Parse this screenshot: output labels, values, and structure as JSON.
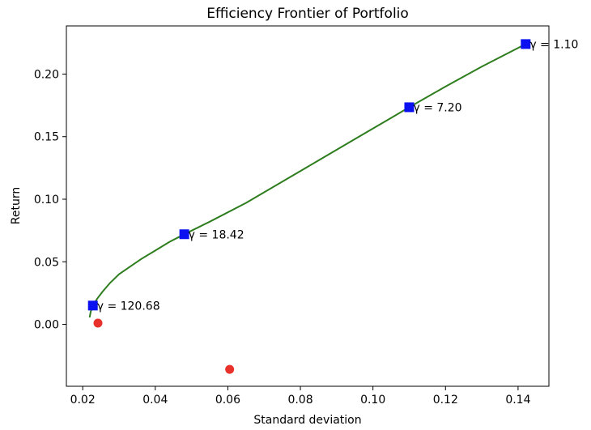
{
  "chart_data": {
    "type": "scatter",
    "title": "Efficiency Frontier of Portfolio",
    "xlabel": "Standard deviation",
    "ylabel": "Return",
    "xlim": [
      0.0155,
      0.1485
    ],
    "ylim": [
      -0.0495,
      0.2385
    ],
    "xticks": [
      0.02,
      0.04,
      0.06,
      0.08,
      0.1,
      0.12,
      0.14
    ],
    "xtick_labels": [
      "0.02",
      "0.04",
      "0.06",
      "0.08",
      "0.10",
      "0.12",
      "0.14"
    ],
    "yticks": [
      0.0,
      0.05,
      0.1,
      0.15,
      0.2
    ],
    "ytick_labels": [
      "0.00",
      "0.05",
      "0.10",
      "0.15",
      "0.20"
    ],
    "grid": false,
    "frontier": {
      "color": "#2e7d1e",
      "points": [
        [
          0.0219,
          0.0055
        ],
        [
          0.0222,
          0.01
        ],
        [
          0.0228,
          0.015
        ],
        [
          0.024,
          0.0205
        ],
        [
          0.0255,
          0.0262
        ],
        [
          0.0275,
          0.033
        ],
        [
          0.03,
          0.04
        ],
        [
          0.033,
          0.046
        ],
        [
          0.036,
          0.052
        ],
        [
          0.04,
          0.059
        ],
        [
          0.044,
          0.066
        ],
        [
          0.048,
          0.072
        ],
        [
          0.055,
          0.082
        ],
        [
          0.065,
          0.097
        ],
        [
          0.075,
          0.114
        ],
        [
          0.085,
          0.131
        ],
        [
          0.095,
          0.148
        ],
        [
          0.105,
          0.165
        ],
        [
          0.11,
          0.1735
        ],
        [
          0.12,
          0.19
        ],
        [
          0.13,
          0.206
        ],
        [
          0.1421,
          0.224
        ]
      ]
    },
    "assets": {
      "color": "#e8312a",
      "points": [
        [
          0.0242,
          0.001
        ],
        [
          0.0605,
          -0.036
        ],
        [
          0.1421,
          0.224
        ]
      ]
    },
    "highlighted": {
      "color": "#0a10f0",
      "points": [
        {
          "x": 0.1421,
          "y": 0.224,
          "label": "γ = 1.10"
        },
        {
          "x": 0.11,
          "y": 0.1735,
          "label": "γ = 7.20"
        },
        {
          "x": 0.048,
          "y": 0.072,
          "label": "γ = 18.42"
        },
        {
          "x": 0.0228,
          "y": 0.015,
          "label": "γ = 120.68"
        }
      ]
    }
  }
}
